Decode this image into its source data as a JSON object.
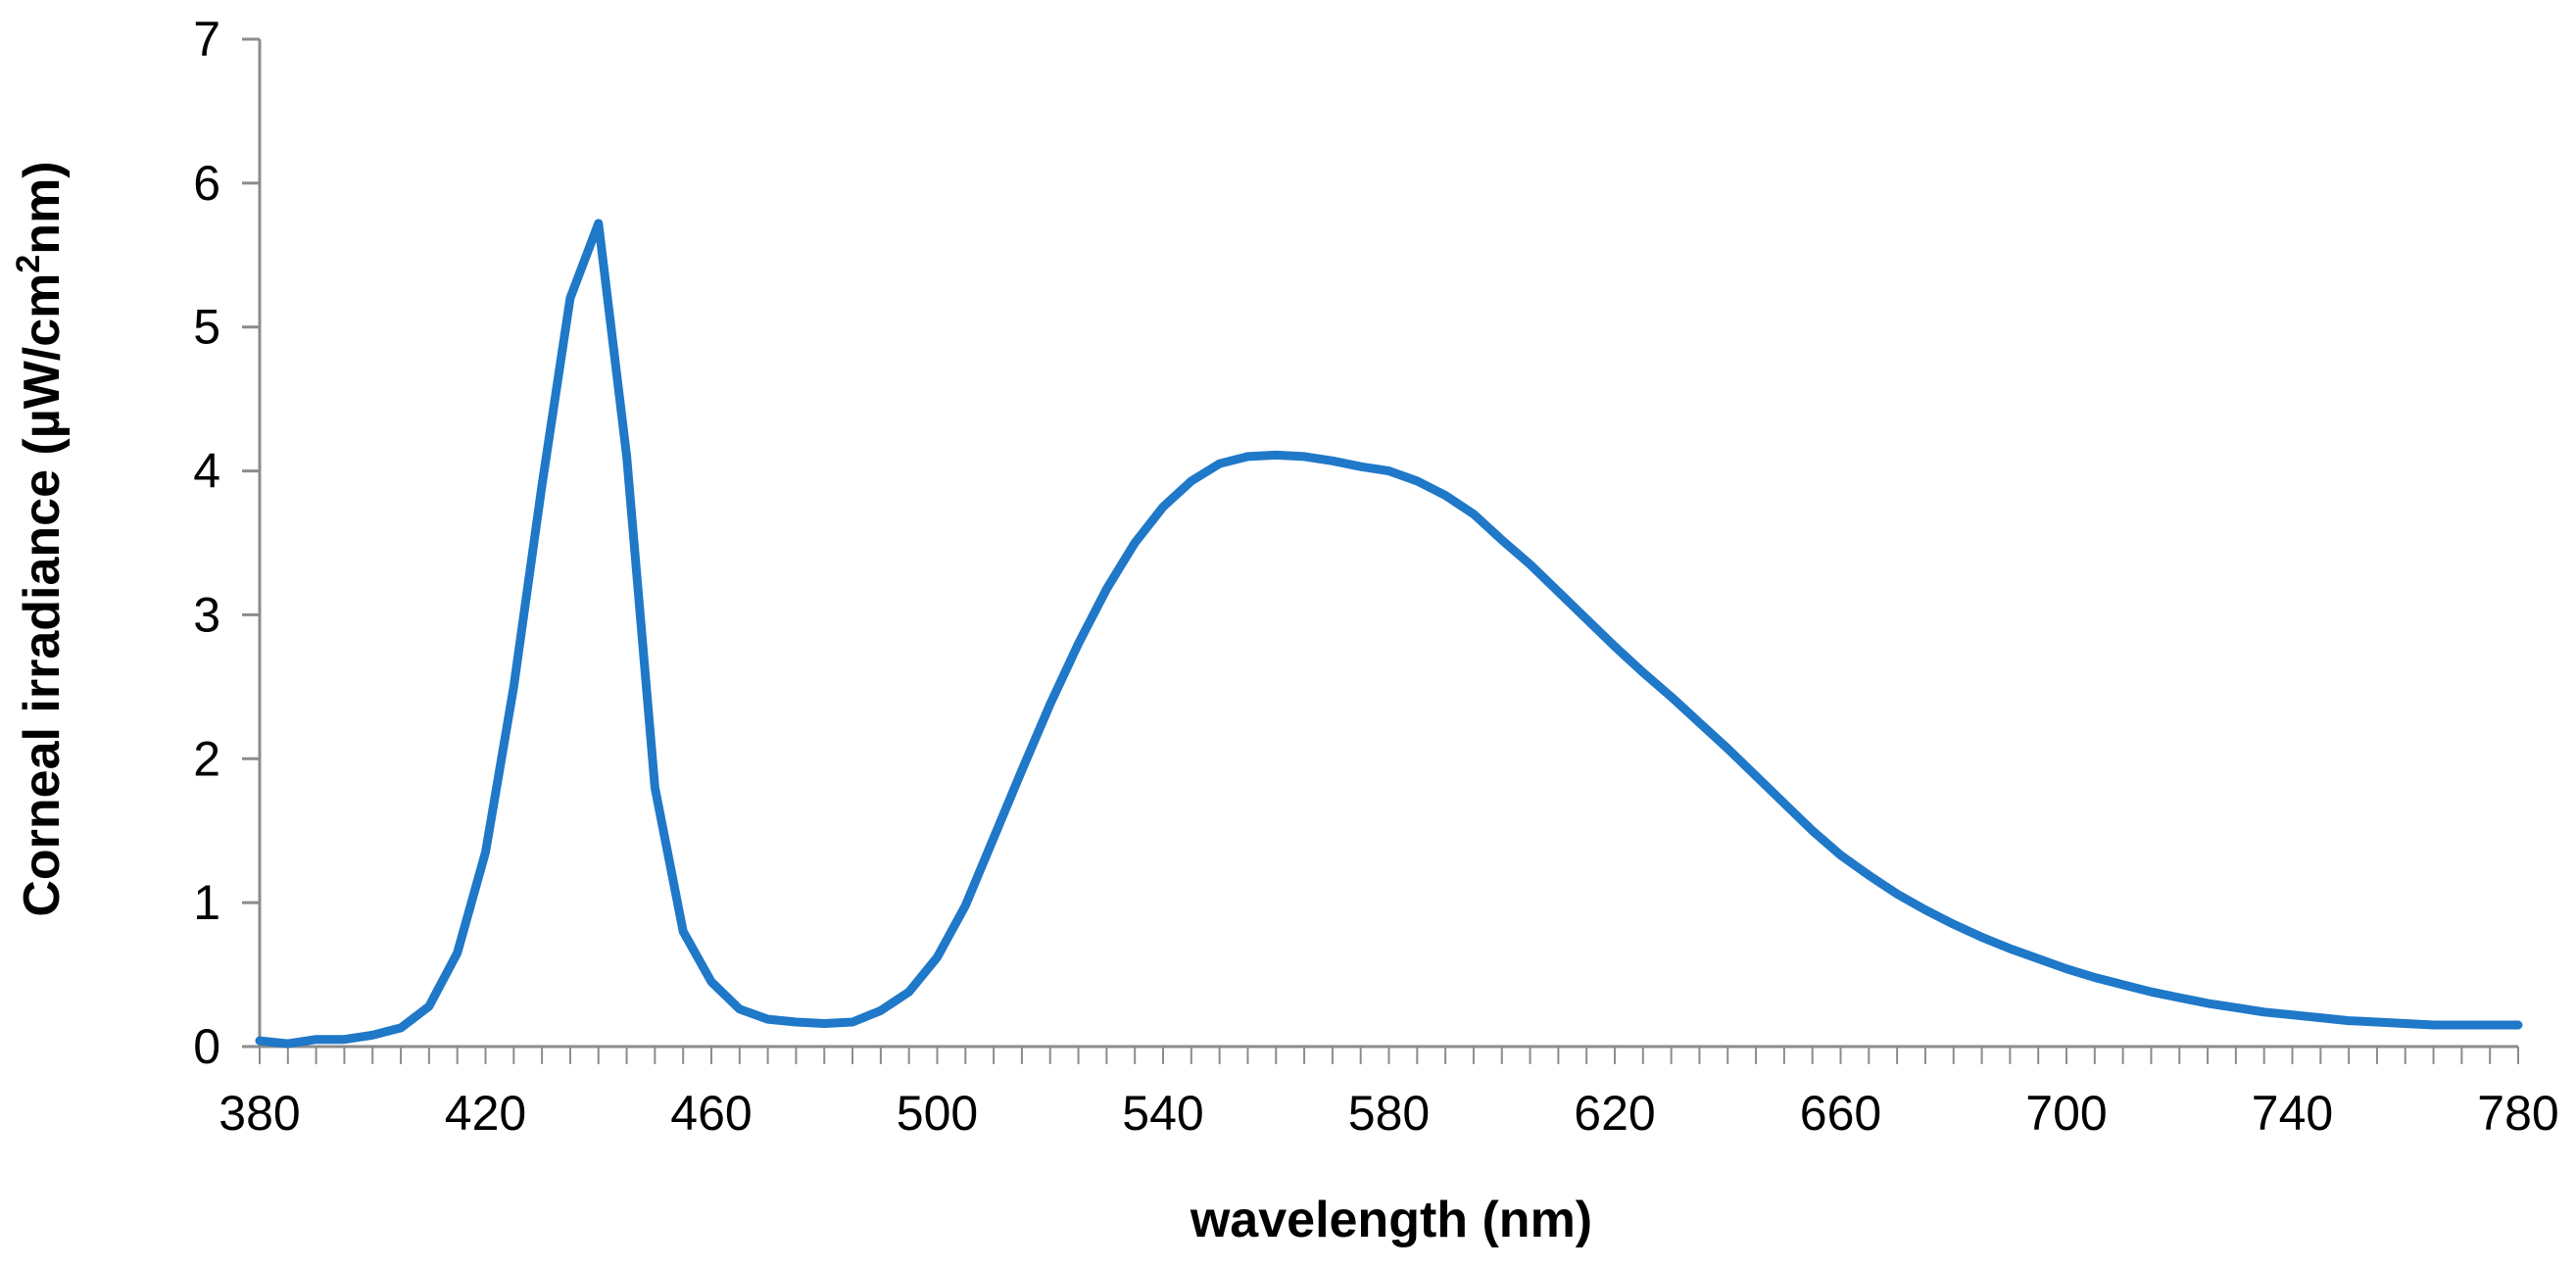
{
  "chart_data": {
    "type": "line",
    "title": "",
    "xlabel": "wavelength (nm)",
    "ylabel_main": "Corneal irradiance (µW/cm",
    "ylabel_sup": "2",
    "ylabel_tail": "nm)",
    "xlim": [
      380,
      780
    ],
    "ylim": [
      0,
      7
    ],
    "x_ticks": [
      "380",
      "420",
      "460",
      "500",
      "540",
      "580",
      "620",
      "660",
      "700",
      "740",
      "780"
    ],
    "y_ticks": [
      "0",
      "1",
      "2",
      "3",
      "4",
      "5",
      "6",
      "7"
    ],
    "grid": false,
    "legend": "none",
    "series_color": "#1F78C8",
    "series": [
      {
        "x": [
          380,
          385,
          390,
          395,
          400,
          405,
          410,
          415,
          420,
          425,
          430,
          435,
          440,
          445,
          450,
          455,
          460,
          465,
          470,
          475,
          480,
          485,
          490,
          495,
          500,
          505,
          510,
          515,
          520,
          525,
          530,
          535,
          540,
          545,
          550,
          555,
          560,
          565,
          570,
          575,
          580,
          585,
          590,
          595,
          600,
          605,
          610,
          615,
          620,
          625,
          630,
          635,
          640,
          645,
          650,
          655,
          660,
          665,
          670,
          675,
          680,
          685,
          690,
          695,
          700,
          705,
          710,
          715,
          720,
          725,
          730,
          735,
          740,
          745,
          750,
          755,
          760,
          765,
          770,
          775,
          780
        ],
        "y": [
          0.04,
          0.02,
          0.05,
          0.05,
          0.08,
          0.13,
          0.28,
          0.65,
          1.35,
          2.5,
          3.9,
          5.2,
          5.72,
          4.1,
          1.8,
          0.8,
          0.45,
          0.26,
          0.19,
          0.17,
          0.16,
          0.17,
          0.25,
          0.38,
          0.62,
          0.98,
          1.45,
          1.92,
          2.38,
          2.8,
          3.18,
          3.5,
          3.75,
          3.93,
          4.05,
          4.1,
          4.11,
          4.1,
          4.07,
          4.03,
          4.0,
          3.93,
          3.83,
          3.7,
          3.52,
          3.35,
          3.16,
          2.97,
          2.78,
          2.6,
          2.43,
          2.25,
          2.07,
          1.88,
          1.69,
          1.5,
          1.33,
          1.19,
          1.06,
          0.95,
          0.85,
          0.76,
          0.68,
          0.61,
          0.54,
          0.48,
          0.43,
          0.38,
          0.34,
          0.3,
          0.27,
          0.24,
          0.22,
          0.2,
          0.18,
          0.17,
          0.16,
          0.15,
          0.15,
          0.15,
          0.15
        ]
      }
    ]
  }
}
